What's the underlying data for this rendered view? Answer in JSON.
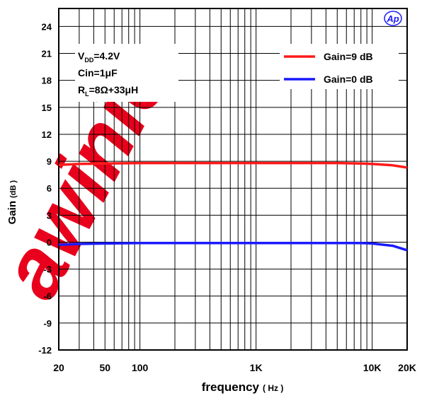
{
  "watermark": {
    "text": "awinic",
    "color": "#e8001c"
  },
  "chart_data": {
    "type": "line",
    "xscale": "log",
    "xlim": [
      20,
      20000
    ],
    "ylim": [
      -12,
      26
    ],
    "grid": true,
    "xlabel": "frequency",
    "xlabel_unit": "( Hz )",
    "ylabel": "Gain",
    "ylabel_unit": "(dB )",
    "xticks": [
      {
        "value": 20,
        "label": "20"
      },
      {
        "value": 50,
        "label": "50"
      },
      {
        "value": 100,
        "label": "100"
      },
      {
        "value": 1000,
        "label": "1K"
      },
      {
        "value": 10000,
        "label": "10K"
      },
      {
        "value": 20000,
        "label": "20K"
      }
    ],
    "yticks": [
      -12,
      -9,
      -6,
      -3,
      0,
      3,
      6,
      9,
      12,
      15,
      18,
      21,
      24
    ],
    "conditions": [
      {
        "main": "V",
        "sub": "DD",
        "rest": "=4.2V"
      },
      {
        "main": "Cin=1μF",
        "sub": "",
        "rest": ""
      },
      {
        "main": "R",
        "sub": "L",
        "rest": "=8Ω+33μH"
      }
    ],
    "logo": "Ap",
    "legend_position": "top-right",
    "series": [
      {
        "name": "Gain=9 dB",
        "color": "#ff1a1a",
        "x": [
          20,
          30,
          50,
          100,
          1000,
          5000,
          8000,
          10000,
          15000,
          20000
        ],
        "y": [
          8.6,
          8.7,
          8.75,
          8.8,
          8.8,
          8.8,
          8.75,
          8.7,
          8.55,
          8.3
        ]
      },
      {
        "name": "Gain=0 dB",
        "color": "#1a1aff",
        "x": [
          20,
          30,
          50,
          100,
          1000,
          5000,
          8000,
          10000,
          15000,
          20000
        ],
        "y": [
          -0.3,
          -0.2,
          -0.15,
          -0.1,
          -0.1,
          -0.1,
          -0.1,
          -0.15,
          -0.4,
          -0.9
        ]
      }
    ]
  }
}
